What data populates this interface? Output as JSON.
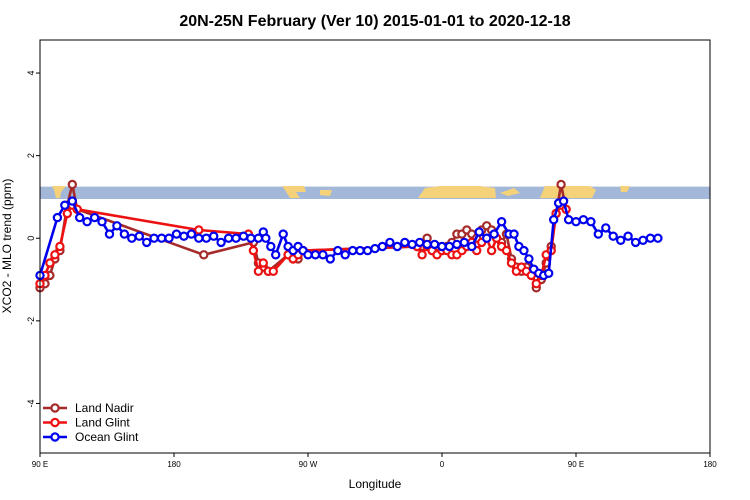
{
  "chart_data": {
    "type": "line",
    "title": "20N-25N February (Ver 10)   2015-01-01 to 2020-12-18",
    "xlabel": "Longitude",
    "ylabel": "XCO2 - MLO trend (ppm)",
    "xlim": [
      -90,
      180
    ],
    "ylim": [
      -5.2,
      4.8
    ],
    "x_ticks": [
      {
        "value": -90,
        "label": "90 E"
      },
      {
        "value": -36,
        "label": "180"
      },
      {
        "value": 18,
        "label": "90 W"
      },
      {
        "value": 72,
        "label": "0"
      },
      {
        "value": 126,
        "label": "90 E"
      },
      {
        "value": 180,
        "label": "180"
      }
    ],
    "y_ticks": [
      -4,
      -2,
      0,
      2,
      4
    ],
    "land_band": {
      "y_bottom": 0.95,
      "y_top": 1.25,
      "ocean_color": "#a3b8d8",
      "land_color": "#f5d27a"
    },
    "legend": {
      "position": "bottom-left"
    },
    "series": [
      {
        "name": "Land Nadir",
        "color": "#a52a2a",
        "points": [
          [
            -90,
            -1.2
          ],
          [
            -88,
            -1.1
          ],
          [
            -86,
            -0.9
          ],
          [
            -84,
            -0.5
          ],
          [
            -82,
            -0.3
          ],
          [
            -79,
            0.8
          ],
          [
            -77,
            1.3
          ],
          [
            -75,
            0.7
          ],
          [
            -24,
            -0.4
          ],
          [
            -4,
            -0.1
          ],
          [
            -2,
            -0.6
          ],
          [
            0,
            -0.7
          ],
          [
            2,
            -0.8
          ],
          [
            10,
            -0.4
          ],
          [
            12,
            -0.5
          ],
          [
            14,
            -0.5
          ],
          [
            16,
            -0.3
          ],
          [
            62,
            -0.2
          ],
          [
            64,
            -0.2
          ],
          [
            66,
            0.0
          ],
          [
            68,
            -0.3
          ],
          [
            70,
            -0.2
          ],
          [
            72,
            -0.3
          ],
          [
            74,
            -0.2
          ],
          [
            76,
            -0.1
          ],
          [
            78,
            0.1
          ],
          [
            80,
            0.1
          ],
          [
            82,
            0.2
          ],
          [
            84,
            0.1
          ],
          [
            86,
            0.0
          ],
          [
            88,
            0.2
          ],
          [
            90,
            0.3
          ],
          [
            92,
            0.2
          ],
          [
            94,
            0.0
          ],
          [
            96,
            -0.1
          ],
          [
            98,
            0.1
          ],
          [
            100,
            -0.5
          ],
          [
            102,
            -0.7
          ],
          [
            104,
            -0.8
          ],
          [
            106,
            -0.7
          ],
          [
            108,
            -0.8
          ],
          [
            110,
            -1.2
          ],
          [
            112,
            -1.0
          ],
          [
            114,
            -0.6
          ],
          [
            116,
            -0.2
          ],
          [
            118,
            0.6
          ],
          [
            120,
            1.3
          ],
          [
            122,
            0.7
          ]
        ]
      },
      {
        "name": "Land Glint",
        "color": "#ee1111",
        "points": [
          [
            -90,
            -1.1
          ],
          [
            -88,
            -0.9
          ],
          [
            -86,
            -0.6
          ],
          [
            -84,
            -0.4
          ],
          [
            -82,
            -0.2
          ],
          [
            -79,
            0.6
          ],
          [
            -77,
            0.8
          ],
          [
            -75,
            0.7
          ],
          [
            -26,
            0.2
          ],
          [
            -6,
            0.1
          ],
          [
            -4,
            -0.3
          ],
          [
            -2,
            -0.8
          ],
          [
            0,
            -0.6
          ],
          [
            2,
            -0.8
          ],
          [
            4,
            -0.8
          ],
          [
            10,
            -0.4
          ],
          [
            12,
            -0.5
          ],
          [
            14,
            -0.4
          ],
          [
            16,
            -0.3
          ],
          [
            62,
            -0.2
          ],
          [
            64,
            -0.4
          ],
          [
            66,
            -0.2
          ],
          [
            68,
            -0.3
          ],
          [
            70,
            -0.4
          ],
          [
            72,
            -0.3
          ],
          [
            74,
            -0.3
          ],
          [
            76,
            -0.4
          ],
          [
            78,
            -0.4
          ],
          [
            80,
            -0.3
          ],
          [
            82,
            -0.2
          ],
          [
            84,
            -0.1
          ],
          [
            86,
            -0.3
          ],
          [
            88,
            -0.1
          ],
          [
            90,
            0.0
          ],
          [
            92,
            -0.3
          ],
          [
            94,
            0.0
          ],
          [
            96,
            -0.2
          ],
          [
            98,
            -0.3
          ],
          [
            100,
            -0.6
          ],
          [
            102,
            -0.8
          ],
          [
            104,
            -0.7
          ],
          [
            106,
            -0.8
          ],
          [
            108,
            -0.9
          ],
          [
            110,
            -1.1
          ],
          [
            112,
            -0.9
          ],
          [
            114,
            -0.4
          ],
          [
            116,
            -0.3
          ],
          [
            118,
            0.6
          ],
          [
            120,
            0.8
          ],
          [
            122,
            0.7
          ]
        ]
      },
      {
        "name": "Ocean Glint",
        "color": "#0000ee",
        "points": [
          [
            -90,
            -0.9
          ],
          [
            -83,
            0.5
          ],
          [
            -80,
            0.8
          ],
          [
            -77,
            0.9
          ],
          [
            -74,
            0.5
          ],
          [
            -71,
            0.4
          ],
          [
            -68,
            0.5
          ],
          [
            -65,
            0.4
          ],
          [
            -62,
            0.1
          ],
          [
            -59,
            0.3
          ],
          [
            -56,
            0.1
          ],
          [
            -53,
            0.0
          ],
          [
            -50,
            0.05
          ],
          [
            -47,
            -0.1
          ],
          [
            -44,
            0.0
          ],
          [
            -41,
            0.0
          ],
          [
            -38,
            0.0
          ],
          [
            -35,
            0.1
          ],
          [
            -32,
            0.05
          ],
          [
            -29,
            0.1
          ],
          [
            -26,
            0.0
          ],
          [
            -23,
            0.0
          ],
          [
            -20,
            0.05
          ],
          [
            -17,
            -0.1
          ],
          [
            -14,
            0.0
          ],
          [
            -11,
            0.0
          ],
          [
            -8,
            0.05
          ],
          [
            -5,
            0.0
          ],
          [
            -2,
            0.0
          ],
          [
            0,
            0.15
          ],
          [
            1,
            0.0
          ],
          [
            3,
            -0.2
          ],
          [
            5,
            -0.4
          ],
          [
            8,
            0.1
          ],
          [
            10,
            -0.2
          ],
          [
            12,
            -0.3
          ],
          [
            14,
            -0.2
          ],
          [
            16,
            -0.3
          ],
          [
            18,
            -0.4
          ],
          [
            21,
            -0.4
          ],
          [
            24,
            -0.4
          ],
          [
            27,
            -0.5
          ],
          [
            30,
            -0.3
          ],
          [
            33,
            -0.4
          ],
          [
            36,
            -0.3
          ],
          [
            39,
            -0.3
          ],
          [
            42,
            -0.3
          ],
          [
            45,
            -0.25
          ],
          [
            48,
            -0.2
          ],
          [
            51,
            -0.1
          ],
          [
            54,
            -0.2
          ],
          [
            57,
            -0.1
          ],
          [
            60,
            -0.15
          ],
          [
            63,
            -0.1
          ],
          [
            66,
            -0.15
          ],
          [
            69,
            -0.15
          ],
          [
            72,
            -0.2
          ],
          [
            75,
            -0.2
          ],
          [
            78,
            -0.15
          ],
          [
            81,
            -0.1
          ],
          [
            84,
            -0.2
          ],
          [
            87,
            0.15
          ],
          [
            90,
            0.0
          ],
          [
            93,
            0.1
          ],
          [
            96,
            0.4
          ],
          [
            99,
            0.1
          ],
          [
            101,
            0.1
          ],
          [
            103,
            -0.2
          ],
          [
            105,
            -0.3
          ],
          [
            107,
            -0.5
          ],
          [
            109,
            -0.75
          ],
          [
            111,
            -0.85
          ],
          [
            113,
            -0.9
          ],
          [
            115,
            -0.85
          ],
          [
            117,
            0.45
          ],
          [
            119,
            0.85
          ],
          [
            121,
            0.9
          ],
          [
            123,
            0.45
          ],
          [
            126,
            0.4
          ],
          [
            129,
            0.45
          ],
          [
            132,
            0.4
          ],
          [
            135,
            0.1
          ],
          [
            138,
            0.25
          ],
          [
            141,
            0.05
          ],
          [
            144,
            -0.05
          ],
          [
            147,
            0.05
          ],
          [
            150,
            -0.1
          ],
          [
            153,
            -0.05
          ],
          [
            156,
            0.0
          ],
          [
            159,
            0.0
          ]
        ]
      }
    ]
  }
}
